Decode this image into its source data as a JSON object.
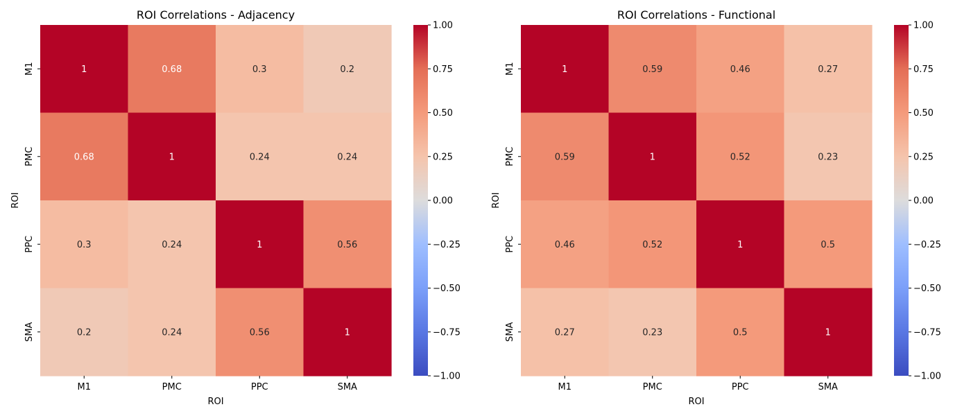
{
  "chart_data": [
    {
      "type": "heatmap",
      "title": "ROI Correlations - Adjacency",
      "xlabel": "ROI",
      "ylabel": "ROI",
      "x_categories": [
        "M1",
        "PMC",
        "PPC",
        "SMA"
      ],
      "y_categories": [
        "M1",
        "PMC",
        "PPC",
        "SMA"
      ],
      "values": [
        [
          1,
          0.68,
          0.3,
          0.2
        ],
        [
          0.68,
          1,
          0.24,
          0.24
        ],
        [
          0.3,
          0.24,
          1,
          0.56
        ],
        [
          0.2,
          0.24,
          0.56,
          1
        ]
      ],
      "labels": [
        [
          "1",
          "0.68",
          "0.3",
          "0.2"
        ],
        [
          "0.68",
          "1",
          "0.24",
          "0.24"
        ],
        [
          "0.3",
          "0.24",
          "1",
          "0.56"
        ],
        [
          "0.2",
          "0.24",
          "0.56",
          "1"
        ]
      ],
      "colormap": "coolwarm",
      "vmin": -1,
      "vmax": 1,
      "colorbar_ticks": [
        1.0,
        0.75,
        0.5,
        0.25,
        0.0,
        -0.25,
        -0.5,
        -0.75,
        -1.0
      ],
      "colorbar_tick_labels": [
        "1.00",
        "0.75",
        "0.50",
        "0.25",
        "0.00",
        "−0.25",
        "−0.50",
        "−0.75",
        "−1.00"
      ]
    },
    {
      "type": "heatmap",
      "title": "ROI Correlations - Functional",
      "xlabel": "ROI",
      "ylabel": "ROI",
      "x_categories": [
        "M1",
        "PMC",
        "PPC",
        "SMA"
      ],
      "y_categories": [
        "M1",
        "PMC",
        "PPC",
        "SMA"
      ],
      "values": [
        [
          1,
          0.59,
          0.46,
          0.27
        ],
        [
          0.59,
          1,
          0.52,
          0.23
        ],
        [
          0.46,
          0.52,
          1,
          0.5
        ],
        [
          0.27,
          0.23,
          0.5,
          1
        ]
      ],
      "labels": [
        [
          "1",
          "0.59",
          "0.46",
          "0.27"
        ],
        [
          "0.59",
          "1",
          "0.52",
          "0.23"
        ],
        [
          "0.46",
          "0.52",
          "1",
          "0.5"
        ],
        [
          "0.27",
          "0.23",
          "0.5",
          "1"
        ]
      ],
      "colormap": "coolwarm",
      "vmin": -1,
      "vmax": 1,
      "colorbar_ticks": [
        1.0,
        0.75,
        0.5,
        0.25,
        0.0,
        -0.25,
        -0.5,
        -0.75,
        -1.0
      ],
      "colorbar_tick_labels": [
        "1.00",
        "0.75",
        "0.50",
        "0.25",
        "0.00",
        "−0.25",
        "−0.50",
        "−0.75",
        "−1.00"
      ]
    }
  ]
}
